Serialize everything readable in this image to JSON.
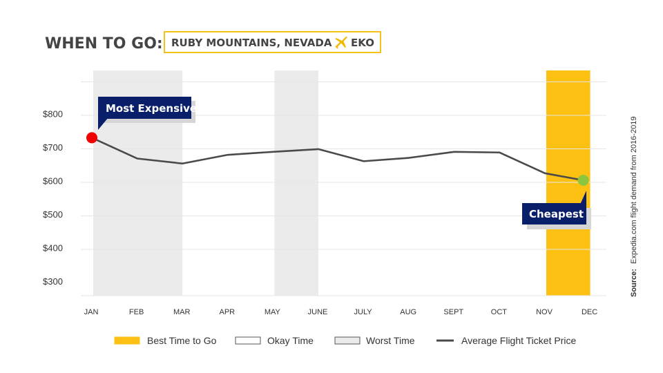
{
  "header": {
    "title": "WHEN TO GO:",
    "subtitle": "RUBY MOUNTAINS, NEVADA",
    "plane_icon": "airplane-icon",
    "destination_code": "EKO"
  },
  "colors": {
    "best": "#FDC113",
    "worst": "#EBEBEB",
    "line": "#4A4A4A",
    "expensive_dot": "#F00000",
    "cheapest_dot": "#8CC63F",
    "callout": "#0A1F6A",
    "grid": "#E6E6E6",
    "subtitle_border": "#F3C31B"
  },
  "chart_data": {
    "type": "line",
    "categories": [
      "JAN",
      "FEB",
      "MAR",
      "APR",
      "MAY",
      "JUNE",
      "JULY",
      "AUG",
      "SEPT",
      "OCT",
      "NOV",
      "DEC"
    ],
    "series": [
      {
        "name": "Average Flight Ticket Price",
        "values": [
          728,
          666,
          651,
          677,
          686,
          694,
          658,
          668,
          686,
          684,
          622,
          601
        ]
      }
    ],
    "yticks": [
      300,
      400,
      500,
      600,
      700,
      800
    ],
    "ytick_labels": [
      "$300",
      "$400",
      "$500",
      "$600",
      "$700",
      "$800"
    ],
    "ylim": [
      255,
      910
    ],
    "shaded_periods": [
      {
        "kind": "worst",
        "start": "JAN",
        "end": "MAR"
      },
      {
        "kind": "worst",
        "start": "MAY",
        "end": "JUNE"
      },
      {
        "kind": "best",
        "start": "NOV",
        "end": "DEC"
      }
    ],
    "annotations": [
      {
        "label": "Most Expensive",
        "month": "JAN",
        "value": 728
      },
      {
        "label": "Cheapest",
        "month": "DEC",
        "value": 601
      }
    ],
    "legend": [
      {
        "kind": "best",
        "label": "Best Time to Go"
      },
      {
        "kind": "okay",
        "label": "Okay Time"
      },
      {
        "kind": "worst",
        "label": "Worst Time"
      },
      {
        "kind": "line",
        "label": "Average Flight Ticket Price"
      }
    ],
    "source_bold": "Source:",
    "source_text": "Expedia.com flight demand from 2016-2019"
  }
}
